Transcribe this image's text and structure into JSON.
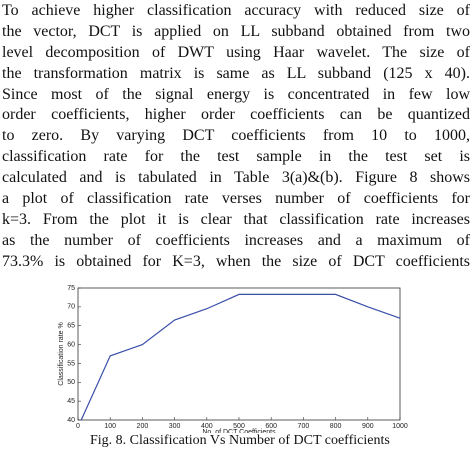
{
  "paragraph": [
    "To achieve higher classification accuracy with reduced size of",
    "the vector, DCT is applied on LL subband  obtained from two",
    "level decomposition of  DWT using Haar wavelet. The size of",
    "the transformation matrix is same as LL subband (125 x 40).",
    "Since most of the signal energy is concentrated in few low",
    "order coefficients, higher order coefficients can be quantized",
    "to zero. By varying DCT coefficients from  10 to 1000,",
    "classification rate for the test sample in the test set is",
    "calculated and is tabulated in Table 3(a)&(b). Figure 8 shows",
    "a plot of classification rate verses number of coefficients for",
    "k=3. From the plot it is clear that  classification rate increases",
    "as the number of coefficients increases and a maximum of",
    "73.3% is obtained  for K=3, when the size of DCT coefficients"
  ],
  "chart_data": {
    "type": "line",
    "x_label": "No. of DCT Coefficients",
    "y_label": "Classification rate %",
    "x": [
      10,
      100,
      200,
      300,
      400,
      500,
      600,
      700,
      800,
      900,
      1000
    ],
    "values": [
      40,
      57,
      60,
      66.5,
      69.5,
      73.3,
      73.3,
      73.3,
      73.3,
      70,
      67
    ],
    "color": "#3a4fa8",
    "xlim": [
      0,
      1000
    ],
    "xticks": [
      0,
      100,
      200,
      300,
      400,
      500,
      600,
      700,
      800,
      900,
      1000
    ],
    "ylim": [
      40,
      75
    ],
    "yticks": [
      40,
      45,
      50,
      55,
      60,
      65,
      70,
      75
    ]
  },
  "caption": "Fig. 8. Classification Vs Number of DCT coefficients"
}
